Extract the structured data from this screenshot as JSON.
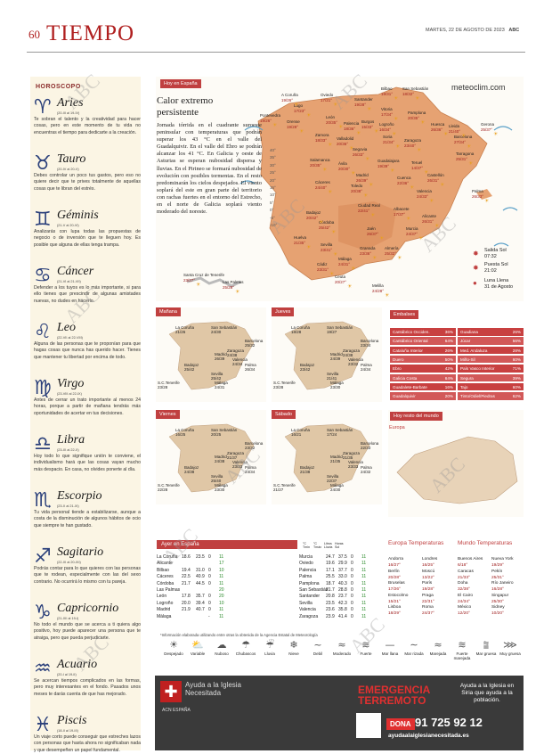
{
  "page_number": "60",
  "section_title": "TIEMPO",
  "dateline": "MARTES, 22 DE AGOSTO DE 2023",
  "brand": "ABC",
  "watermark": "ABC",
  "horoscope": {
    "heading": "HOROSCOPO",
    "signs": [
      {
        "name": "Aries",
        "dates": "(20-III al 19-IV)",
        "text": "Te sobran el talento y la creatividad para hacer cosas, pero en este momento de tu vida no encuentras el tiempo para dedicarte a la creación."
      },
      {
        "name": "Tauro",
        "dates": "(20-IV al 20-V)",
        "text": "Debes controlar un poco tus gastos, pero eso no quiere decir que te prives totalmente de aquellas cosas que te libran del estrés."
      },
      {
        "name": "Géminis",
        "dates": "(21-V al 20-VI)",
        "text": "Analizarás con lupa todas las propuestas de negocio o de inversión que te lleguen hoy. Es posible que alguna de ellas tenga trampa."
      },
      {
        "name": "Cáncer",
        "dates": "(21-VI al 21-VII)",
        "text": "Defender a los tuyos es lo más importante, si para ello tienes que prescindir de algunas amistades nuevas, no dudes en hacerlo."
      },
      {
        "name": "Leo",
        "dates": "(22-VII al 22-VIII)",
        "text": "Alguna de las personas que te proponían para que hagas cosas que nunca has querido hacer. Tienes que mantener tu libertad por encima de todo."
      },
      {
        "name": "Virgo",
        "dates": "(23-VIII al 22-IX)",
        "text": "Antes de cerrar un trato importante al menos 24 horas, porque a partir de mañana tendrás más oportunidades de acertar en tus decisiones."
      },
      {
        "name": "Libra",
        "dates": "(23-IX al 22-X)",
        "text": "Hoy todo lo que signifique unión te conviene, el individualismo hará que las cosas vayan mucho más despacio. En casa, no olvides ponerte al día."
      },
      {
        "name": "Escorpio",
        "dates": "(23-X al 21-XI)",
        "text": "Tu vida personal tiende a estabilizarse, aunque a costa de la disminución de algunos hábitos de ocio que siempre te han gustado."
      },
      {
        "name": "Sagitario",
        "dates": "(22-XI al 20-XII)",
        "text": "Podrás contar para lo que quieres con las personas que te rodean, especialmente con las del sexo contrario. No ocurrirá lo mismo con tu pareja."
      },
      {
        "name": "Capricornio",
        "dates": "(21-XII al 19-I)",
        "text": "No todo el mundo que se acerca a ti quiera algo positivo, hoy puede aparecer una persona que te atraiga, pero que pueda perjudicarte."
      },
      {
        "name": "Acuario",
        "dates": "(20-I al 19-II)",
        "text": "Se acercan tiempos complicados en las formas, pero muy interesantes en el fondo. Pasados unos meses te darás cuenta de que has mejorado."
      },
      {
        "name": "Piscis",
        "dates": "(18-II al 19-III)",
        "text": "Un viaje corto puede conseguir que estreches lazos con personas que hasta ahora no significaban nada y que desempeñen un papel fundamental."
      }
    ]
  },
  "spain": {
    "tag": "Hoy en España",
    "headline": "Calor extremo persistente",
    "lead": "Jornada tórrida en el cuadrante suroeste peninsular con temperaturas que podrán superar los 43 °C en el valle del Guadalquivir. En el valle del Ebro se podrán alcanzar los 41 °C. En Galicia y oeste de Asturias se esperan nubosidad dispersa y lluvias. En el Pirineo se formará nubosidad de evolución con posibles tormentas. En el resto predominarán los cielos despejados. El viento soplará del este en gran parte del territorio con rachas fuertes en el entorno del Estrecho, en el norte de Galicia soplará viento moderado del noreste.",
    "source": "meteoclim.com",
    "sunrise_label": "Salida Sol",
    "sunrise": "07:32",
    "sunset_label": "Puesta Sol",
    "sunset": "21:02",
    "moon_label": "Luna Llena",
    "moon": "31 de Agosto",
    "scale": [
      "40°",
      "35°",
      "30°",
      "25°",
      "20°",
      "15°",
      "10°",
      "5°",
      "0°",
      "-5°",
      "-10°"
    ],
    "cities": [
      {
        "n": "A Coruña",
        "t": "19/26°"
      },
      {
        "n": "Oviedo",
        "t": "17/21°"
      },
      {
        "n": "Bilbao",
        "t": "19/31°"
      },
      {
        "n": "San Sebastián",
        "t": "18/32°"
      },
      {
        "n": "Lugo",
        "t": "17/23°"
      },
      {
        "n": "Santander",
        "t": "19/28°"
      },
      {
        "n": "Pontevedra",
        "t": "19/26°"
      },
      {
        "n": "Vitoria",
        "t": "17/34°"
      },
      {
        "n": "Orense",
        "t": "19/28°"
      },
      {
        "n": "León",
        "t": "20/35°"
      },
      {
        "n": "Palencia",
        "t": "18/36°"
      },
      {
        "n": "Burgos",
        "t": "15/33°"
      },
      {
        "n": "Logroño",
        "t": "16/34°"
      },
      {
        "n": "Pamplona",
        "t": "20/35°"
      },
      {
        "n": "Huesca",
        "t": "26/36°"
      },
      {
        "n": "Lleida",
        "t": "21/40°"
      },
      {
        "n": "Gerona",
        "t": "25/37°"
      },
      {
        "n": "Zamora",
        "t": "18/33°"
      },
      {
        "n": "Valladolid",
        "t": "20/36°"
      },
      {
        "n": "Soria",
        "t": "21/34°"
      },
      {
        "n": "Zaragoza",
        "t": "23/40°"
      },
      {
        "n": "Barcelona",
        "t": "27/34°"
      },
      {
        "n": "Segovia",
        "t": "26/33°"
      },
      {
        "n": "Tarragona",
        "t": "25/31°"
      },
      {
        "n": "Salamanca",
        "t": "20/35°"
      },
      {
        "n": "Ávila",
        "t": "20/30°"
      },
      {
        "n": "Guadalajara",
        "t": "19/39°"
      },
      {
        "n": "Teruel",
        "t": "14/37°"
      },
      {
        "n": "Madrid",
        "t": "26/39°"
      },
      {
        "n": "Cuenca",
        "t": "22/36°"
      },
      {
        "n": "Castellón",
        "t": "26/31°"
      },
      {
        "n": "Cáceres",
        "t": "24/40°"
      },
      {
        "n": "Toledo",
        "t": "20/38°"
      },
      {
        "n": "Valencia",
        "t": "24/33°"
      },
      {
        "n": "Palma",
        "t": "26/33°"
      },
      {
        "n": "Ciudad Real",
        "t": "22/41°"
      },
      {
        "n": "Albacete",
        "t": "17/37°"
      },
      {
        "n": "Badajoz",
        "t": "20/42°"
      },
      {
        "n": "Alicante",
        "t": "26/31°"
      },
      {
        "n": "Córdoba",
        "t": "25/42°"
      },
      {
        "n": "Jaén",
        "t": "26/37°"
      },
      {
        "n": "Murcia",
        "t": "24/37°"
      },
      {
        "n": "Huelva",
        "t": "21/35°"
      },
      {
        "n": "Sevilla",
        "t": "23/41°"
      },
      {
        "n": "Granada",
        "t": "23/36°"
      },
      {
        "n": "Almería",
        "t": "25/32°"
      },
      {
        "n": "Málaga",
        "t": "24/31°"
      },
      {
        "n": "Cádiz",
        "t": "23/31°"
      },
      {
        "n": "Ceuta",
        "t": "20/27°"
      },
      {
        "n": "Melilla",
        "t": "24/28°"
      },
      {
        "n": "Santa Cruz de Tenerife",
        "t": "23/27°"
      },
      {
        "n": "Las Palmas",
        "t": "25/28°"
      }
    ]
  },
  "forecast_maps": [
    {
      "tag": "Mañana",
      "cities": [
        {
          "n": "La Coruña",
          "t": "21/26"
        },
        {
          "n": "San Sebastián",
          "t": "24/30"
        },
        {
          "n": "Barcelona",
          "t": "25/32"
        },
        {
          "n": "Zaragoza",
          "t": "24/38"
        },
        {
          "n": "Madrid",
          "t": "26/39"
        },
        {
          "n": "Valencia",
          "t": "24/34"
        },
        {
          "n": "Palma",
          "t": "26/34"
        },
        {
          "n": "Badajoz",
          "t": "25/42"
        },
        {
          "n": "Sevilla",
          "t": "25/42"
        },
        {
          "n": "Málaga",
          "t": "24/31"
        },
        {
          "n": "S.C.Tenerife",
          "t": "23/28"
        }
      ]
    },
    {
      "tag": "Jueves",
      "cities": [
        {
          "n": "La Coruña",
          "t": "18/28"
        },
        {
          "n": "San Sebastián",
          "t": "19/27"
        },
        {
          "n": "Barcelona",
          "t": "23/34"
        },
        {
          "n": "Zaragoza",
          "t": "24/38"
        },
        {
          "n": "Madrid",
          "t": "24/39"
        },
        {
          "n": "Valencia",
          "t": "23/32"
        },
        {
          "n": "Palma",
          "t": "24/34"
        },
        {
          "n": "Badajoz",
          "t": "23/42"
        },
        {
          "n": "Sevilla",
          "t": "21/41"
        },
        {
          "n": "Málaga",
          "t": "23/30"
        },
        {
          "n": "S.C.Tenerife",
          "t": "23/28"
        }
      ]
    },
    {
      "tag": "Viernes",
      "cities": [
        {
          "n": "La Coruña",
          "t": "16/25"
        },
        {
          "n": "San Sebastián",
          "t": "20/25"
        },
        {
          "n": "Barcelona",
          "t": "23/32"
        },
        {
          "n": "Zaragoza",
          "t": "21/37"
        },
        {
          "n": "Madrid",
          "t": "24/38"
        },
        {
          "n": "Valencia",
          "t": "23/33"
        },
        {
          "n": "Palma",
          "t": "24/34"
        },
        {
          "n": "Badajoz",
          "t": "24/38"
        },
        {
          "n": "Sevilla",
          "t": "25/40"
        },
        {
          "n": "Málaga",
          "t": "23/30"
        },
        {
          "n": "S.C.Tenerife",
          "t": "22/28"
        }
      ]
    },
    {
      "tag": "Sábado",
      "cities": [
        {
          "n": "La Coruña",
          "t": "16/21"
        },
        {
          "n": "San Sebastián",
          "t": "17/24"
        },
        {
          "n": "Barcelona",
          "t": "22/33"
        },
        {
          "n": "Zaragoza",
          "t": "21/35"
        },
        {
          "n": "Madrid",
          "t": "21/35"
        },
        {
          "n": "Valencia",
          "t": "23/33"
        },
        {
          "n": "Palma",
          "t": "24/32"
        },
        {
          "n": "Badajoz",
          "t": "21/38"
        },
        {
          "n": "Sevilla",
          "t": "22/37"
        },
        {
          "n": "Málaga",
          "t": "24/30"
        },
        {
          "n": "S.C.Tenerife",
          "t": "21/27"
        }
      ]
    }
  ],
  "embalses": {
    "tag": "Embalses",
    "left": [
      [
        "Cantábrico Occiden.",
        "36%"
      ],
      [
        "Cantábrico Oriental",
        "64%"
      ],
      [
        "Cataluña Interior",
        "26%"
      ],
      [
        "Duero",
        "50%"
      ],
      [
        "Ebro",
        "42%"
      ],
      [
        "Galicia Costa",
        "64%"
      ],
      [
        "Guadalete-Barbate",
        "16%"
      ],
      [
        "Guadalquivir",
        "20%"
      ]
    ],
    "right": [
      [
        "Guadiana",
        "26%"
      ],
      [
        "Júcar",
        "56%"
      ],
      [
        "Med. Andaluza",
        "28%"
      ],
      [
        "Miño-Sil",
        "60%"
      ],
      [
        "País Vasco Interior",
        "71%"
      ],
      [
        "Segura",
        "39%"
      ],
      [
        "Tajo",
        "60%"
      ],
      [
        "Tinto/Odiel/Piedras",
        "62%"
      ]
    ]
  },
  "world": {
    "tag": "Hoy resto del mundo",
    "region": "Europa"
  },
  "ayer": {
    "tag": "Ayer en España",
    "headers": [
      "°C Tmin",
      "°C Tmáx",
      "Litros Lluvia",
      "Horas Sol"
    ],
    "left": [
      [
        "La Coruña",
        "18.6",
        "23.5",
        "0",
        "11"
      ],
      [
        "Alicante",
        "",
        "",
        "",
        "17"
      ],
      [
        "Bilbao",
        "19.4",
        "31.0",
        "0",
        "10"
      ],
      [
        "Cáceres",
        "22.5",
        "40.9",
        "0",
        "11"
      ],
      [
        "Córdoba",
        "21.7",
        "44.5",
        "0",
        "11"
      ],
      [
        "Las Palmas",
        "",
        "",
        "",
        "20"
      ],
      [
        "León",
        "17.8",
        "35.7",
        "0",
        "20"
      ],
      [
        "Logroño",
        "20.0",
        "39.4",
        "0",
        "10"
      ],
      [
        "Madrid",
        "21.9",
        "40.7",
        "0",
        "11"
      ],
      [
        "Málaga",
        "",
        "",
        "-",
        "11"
      ]
    ],
    "right": [
      [
        "Murcia",
        "24.7",
        "37.5",
        "0",
        "11"
      ],
      [
        "Oviedo",
        "19.6",
        "29.9",
        "0",
        "11"
      ],
      [
        "Palencia",
        "17.1",
        "37.7",
        "0",
        "11"
      ],
      [
        "Palma",
        "25.5",
        "33.0",
        "0",
        "11"
      ],
      [
        "Pamplona",
        "18.7",
        "40.3",
        "0",
        "11"
      ],
      [
        "San Sebastián",
        "21.7",
        "28.8",
        "0",
        "11"
      ],
      [
        "Santander",
        "20.8",
        "23.7",
        "0",
        "11"
      ],
      [
        "Sevilla",
        "23.5",
        "42.3",
        "0",
        "11"
      ],
      [
        "Valencia",
        "23.6",
        "35.8",
        "0",
        "11"
      ],
      [
        "Zaragoza",
        "23.9",
        "41.4",
        "0",
        "11"
      ]
    ]
  },
  "europa": {
    "title": "Europa Temperaturas",
    "rows": [
      [
        "Andorra",
        "16/27°",
        "Londres",
        "16/25°"
      ],
      [
        "Berlín",
        "20/28°",
        "Moscú",
        "13/22°"
      ],
      [
        "Bruselas",
        "17/26°",
        "París",
        "19/28°"
      ],
      [
        "Estocolmo",
        "15/21°",
        "Praga",
        "22/31°"
      ],
      [
        "Lisboa",
        "18/29°",
        "Roma",
        "24/37°"
      ]
    ]
  },
  "mundo": {
    "title": "Mundo Temperaturas",
    "rows": [
      [
        "Buenos Aires",
        "6/18°",
        "Nueva York",
        "19/29°"
      ],
      [
        "Caracas",
        "21/33°",
        "Pekín",
        "25/31°"
      ],
      [
        "Doha",
        "32/38°",
        "Río Janeiro",
        "16/28°"
      ],
      [
        "El Cairo",
        "24/34°",
        "Singapur",
        "25/30°"
      ],
      [
        "México",
        "12/20°",
        "Sidney",
        "10/20°"
      ]
    ]
  },
  "footnote": "*Información elaborada utilizando entre otras la obtenida de la Agencia Estatal de Meteorología",
  "legend": [
    "Despejado",
    "Variable",
    "Nuboso",
    "Chubascos",
    "Lluvia",
    "Nieve",
    "Debil",
    "Moderado",
    "Fuerte",
    "Mar llana",
    "Mar rizada",
    "Marejada",
    "Fuerte marejada",
    "Mar gruesa",
    "Muy gruesa"
  ],
  "ad": {
    "org1": "Ayuda a la Iglesia Necesitada",
    "org2": "ACN ESPAÑA",
    "headline": "EMERGENCIA TERREMOTO",
    "side": "Ayuda a la Iglesia en Siria que ayuda a la población.",
    "donate": "DONA",
    "phone": "91 725 92 12",
    "url": "ayudaalaiglesianecesitada.es"
  }
}
